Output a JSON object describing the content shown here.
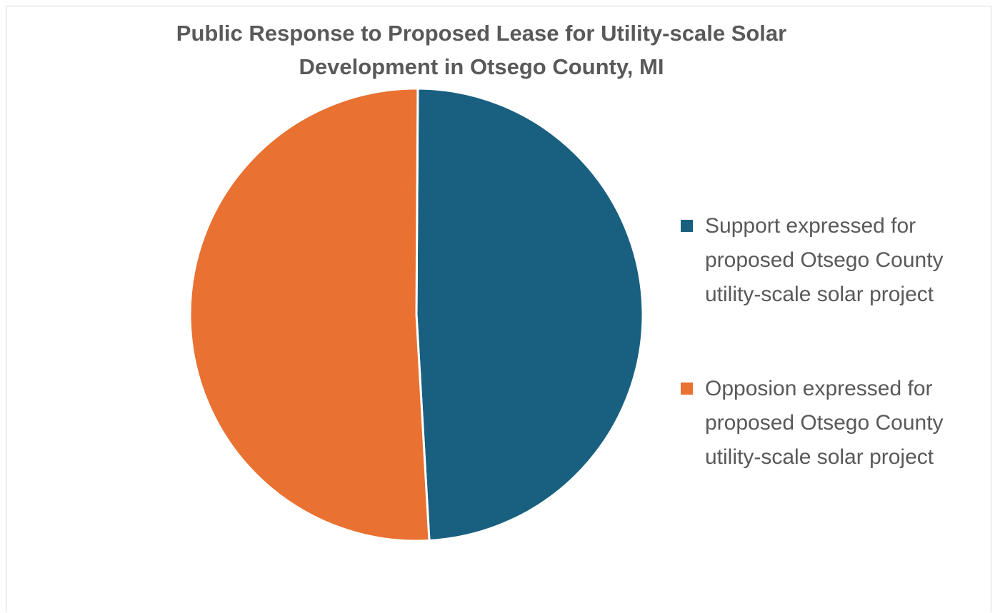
{
  "chart_data": {
    "type": "pie",
    "title": "Public Response to Proposed Lease for Utility-scale Solar Development in Otsego County, MI",
    "title_lines": [
      "Public Response to Proposed Lease for Utility-scale Solar",
      "Development in Otsego County, MI"
    ],
    "categories": [
      "Support expressed for proposed Otsego County utility-scale solar project",
      "Opposion expressed for proposed Otsego County utility-scale solar project"
    ],
    "values": [
      49,
      51
    ],
    "colors": [
      "#196080",
      "#E97132"
    ],
    "legend_position": "right",
    "legend_lines": [
      [
        "Support expressed for",
        "proposed Otsego County",
        "utility-scale solar project"
      ],
      [
        "Opposion expressed for",
        "proposed Otsego County",
        "utility-scale solar project"
      ]
    ]
  }
}
